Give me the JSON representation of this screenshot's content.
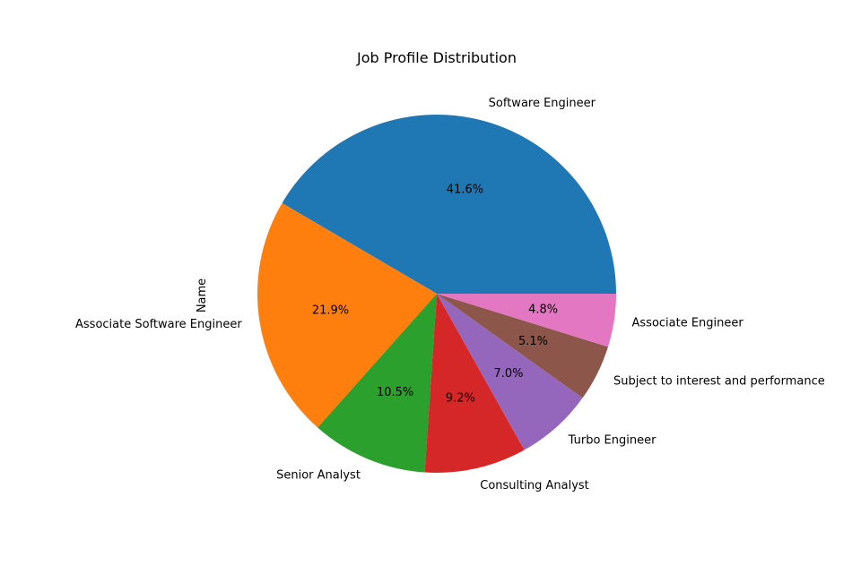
{
  "chart_data": {
    "type": "pie",
    "title": "Job Profile Distribution",
    "ylabel": "Name",
    "start_angle_deg": 0,
    "direction": "counterclockwise",
    "slices": [
      {
        "label": "Software Engineer",
        "percent": 41.6,
        "pct_label": "41.6%",
        "color": "#1f77b4"
      },
      {
        "label": "Associate Software Engineer",
        "percent": 21.9,
        "pct_label": "21.9%",
        "color": "#ff7f0e"
      },
      {
        "label": "Senior Analyst",
        "percent": 10.5,
        "pct_label": "10.5%",
        "color": "#2ca02c"
      },
      {
        "label": "Consulting Analyst",
        "percent": 9.2,
        "pct_label": "9.2%",
        "color": "#d62728"
      },
      {
        "label": "Turbo Engineer",
        "percent": 7.0,
        "pct_label": "7.0%",
        "color": "#9467bd"
      },
      {
        "label": "Subject to interest and performance",
        "percent": 5.1,
        "pct_label": "5.1%",
        "color": "#8c564b"
      },
      {
        "label": "Associate Engineer",
        "percent": 4.8,
        "pct_label": "4.8%",
        "color": "#e377c2"
      }
    ]
  }
}
